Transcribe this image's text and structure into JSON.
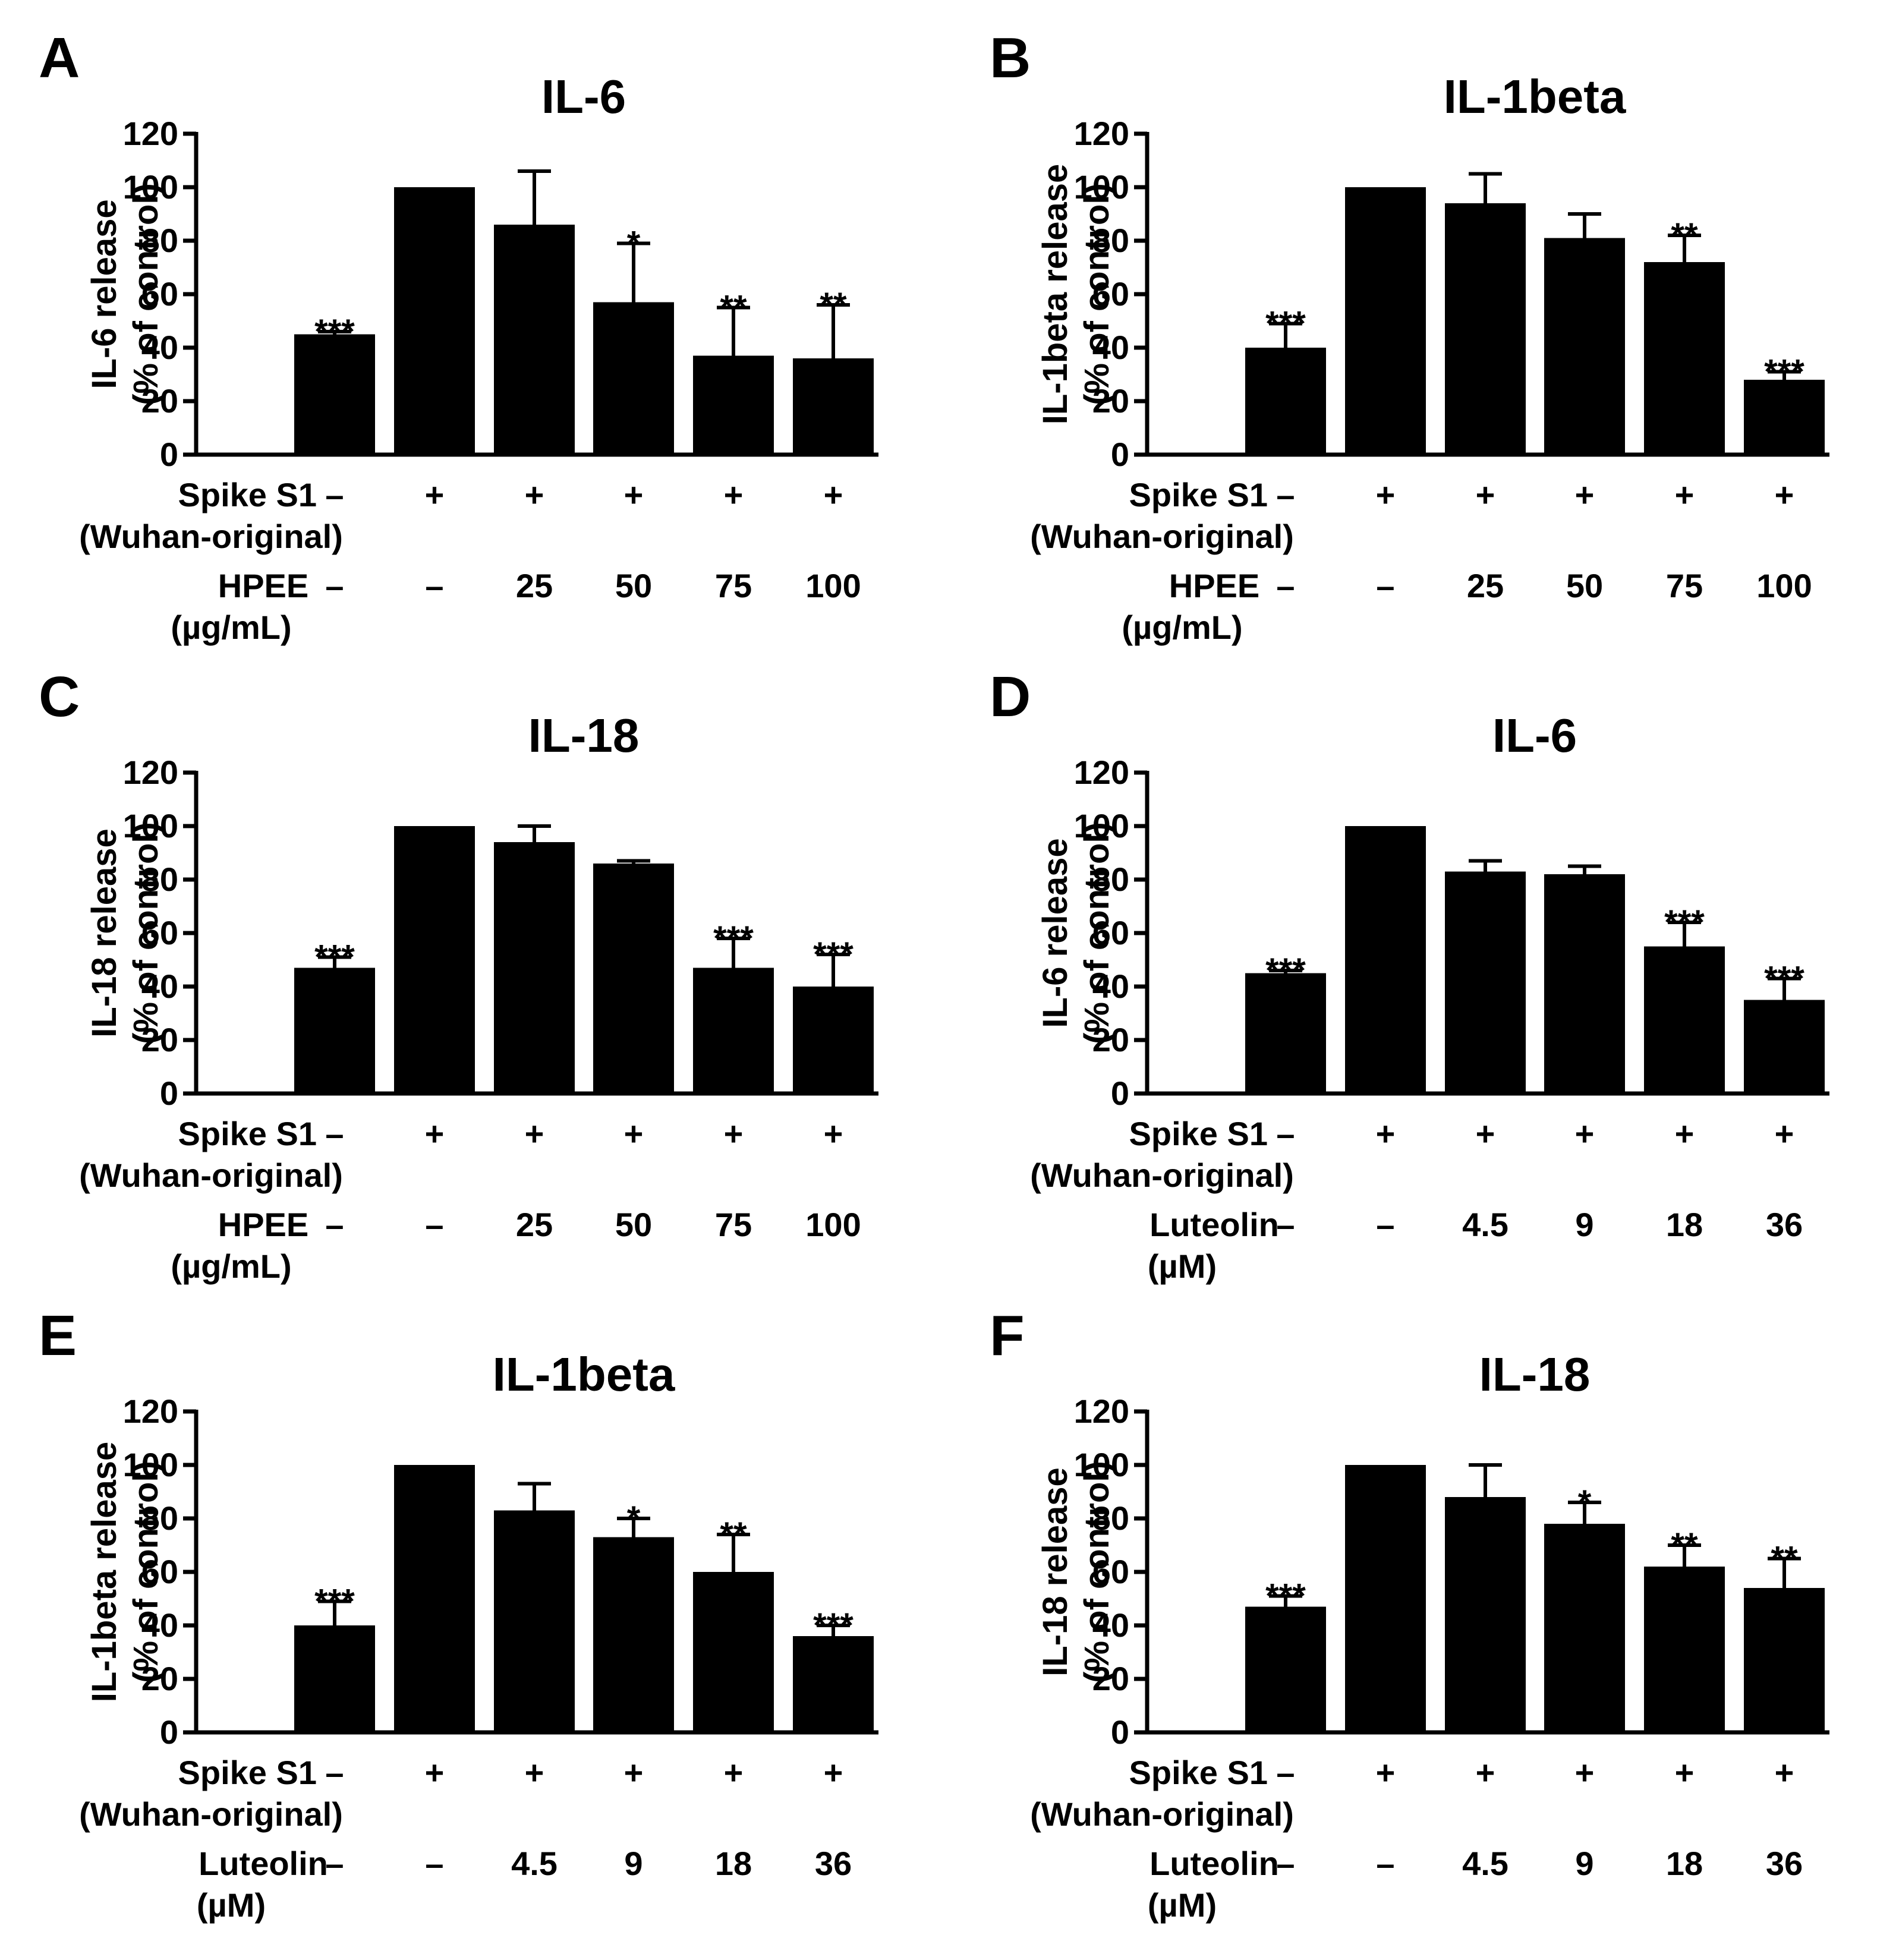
{
  "chart_data": [
    {
      "panel": "A",
      "type": "bar",
      "title": "IL-6",
      "ylabel": [
        "IL-6 release",
        "(% of control)"
      ],
      "ylim": [
        0,
        120
      ],
      "yticks": [
        0,
        20,
        40,
        60,
        80,
        100,
        120
      ],
      "values": [
        45,
        100,
        86,
        57,
        37,
        36
      ],
      "errors": [
        1,
        0,
        20,
        22,
        18,
        20
      ],
      "significance": [
        "***",
        "",
        "",
        "*",
        "**",
        "**"
      ],
      "row1": {
        "label": [
          "Spike S1",
          "(Wuhan-original)"
        ],
        "values": [
          "–",
          "+",
          "+",
          "+",
          "+",
          "+"
        ]
      },
      "row2": {
        "label": [
          "HPEE",
          "(µg/mL)"
        ],
        "values": [
          "–",
          "–",
          "25",
          "50",
          "75",
          "100"
        ]
      }
    },
    {
      "panel": "B",
      "type": "bar",
      "title": "IL-1beta",
      "ylabel": [
        "IL-1beta release",
        "(% of control)"
      ],
      "ylim": [
        0,
        120
      ],
      "yticks": [
        0,
        20,
        40,
        60,
        80,
        100,
        120
      ],
      "values": [
        40,
        100,
        94,
        81,
        72,
        28
      ],
      "errors": [
        9,
        0,
        11,
        9,
        10,
        3
      ],
      "significance": [
        "***",
        "",
        "",
        "",
        "**",
        "***"
      ],
      "row1": {
        "label": [
          "Spike S1",
          "(Wuhan-original)"
        ],
        "values": [
          "–",
          "+",
          "+",
          "+",
          "+",
          "+"
        ]
      },
      "row2": {
        "label": [
          "HPEE",
          "(µg/mL)"
        ],
        "values": [
          "–",
          "–",
          "25",
          "50",
          "75",
          "100"
        ]
      }
    },
    {
      "panel": "C",
      "type": "bar",
      "title": "IL-18",
      "ylabel": [
        "IL-18 release",
        "(% of control)"
      ],
      "ylim": [
        0,
        120
      ],
      "yticks": [
        0,
        20,
        40,
        60,
        80,
        100,
        120
      ],
      "values": [
        47,
        100,
        94,
        86,
        47,
        40
      ],
      "errors": [
        4,
        0,
        6,
        1,
        11,
        12
      ],
      "significance": [
        "***",
        "",
        "",
        "",
        "***",
        "***"
      ],
      "row1": {
        "label": [
          "Spike S1",
          "(Wuhan-original)"
        ],
        "values": [
          "–",
          "+",
          "+",
          "+",
          "+",
          "+"
        ]
      },
      "row2": {
        "label": [
          "HPEE",
          "(µg/mL)"
        ],
        "values": [
          "–",
          "–",
          "25",
          "50",
          "75",
          "100"
        ]
      }
    },
    {
      "panel": "D",
      "type": "bar",
      "title": "IL-6",
      "ylabel": [
        "IL-6 release",
        "(% of control)"
      ],
      "ylim": [
        0,
        120
      ],
      "yticks": [
        0,
        20,
        40,
        60,
        80,
        100,
        120
      ],
      "values": [
        45,
        100,
        83,
        82,
        55,
        35
      ],
      "errors": [
        1,
        0,
        4,
        3,
        9,
        8
      ],
      "significance": [
        "***",
        "",
        "",
        "",
        "***",
        "***"
      ],
      "row1": {
        "label": [
          "Spike S1",
          "(Wuhan-original)"
        ],
        "values": [
          "–",
          "+",
          "+",
          "+",
          "+",
          "+"
        ]
      },
      "row2": {
        "label": [
          "Luteolin",
          "(µM)"
        ],
        "values": [
          "–",
          "–",
          "4.5",
          "9",
          "18",
          "36"
        ]
      }
    },
    {
      "panel": "E",
      "type": "bar",
      "title": "IL-1beta",
      "ylabel": [
        "IL-1beta release",
        "(% of control)"
      ],
      "ylim": [
        0,
        120
      ],
      "yticks": [
        0,
        20,
        40,
        60,
        80,
        100,
        120
      ],
      "values": [
        40,
        100,
        83,
        73,
        60,
        36
      ],
      "errors": [
        9,
        0,
        10,
        7,
        14,
        4
      ],
      "significance": [
        "***",
        "",
        "",
        "*",
        "**",
        "***"
      ],
      "row1": {
        "label": [
          "Spike S1",
          "(Wuhan-original)"
        ],
        "values": [
          "–",
          "+",
          "+",
          "+",
          "+",
          "+"
        ]
      },
      "row2": {
        "label": [
          "Luteolin",
          "(µM)"
        ],
        "values": [
          "–",
          "–",
          "4.5",
          "9",
          "18",
          "36"
        ]
      }
    },
    {
      "panel": "F",
      "type": "bar",
      "title": "IL-18",
      "ylabel": [
        "IL-18 release",
        "(% of control)"
      ],
      "ylim": [
        0,
        120
      ],
      "yticks": [
        0,
        20,
        40,
        60,
        80,
        100,
        120
      ],
      "values": [
        47,
        100,
        88,
        78,
        62,
        54
      ],
      "errors": [
        4,
        0,
        12,
        8,
        8,
        11
      ],
      "significance": [
        "***",
        "",
        "",
        "*",
        "**",
        "**"
      ],
      "row1": {
        "label": [
          "Spike S1",
          "(Wuhan-original)"
        ],
        "values": [
          "–",
          "+",
          "+",
          "+",
          "+",
          "+"
        ]
      },
      "row2": {
        "label": [
          "Luteolin",
          "(µM)"
        ],
        "values": [
          "–",
          "–",
          "4.5",
          "9",
          "18",
          "36"
        ]
      }
    }
  ]
}
